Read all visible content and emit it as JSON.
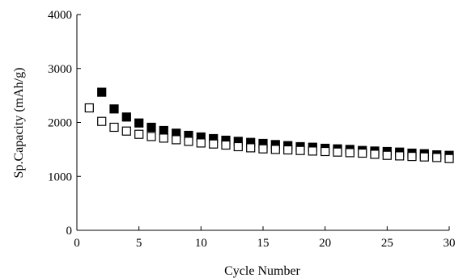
{
  "chart_data": {
    "type": "scatter",
    "title": "",
    "xlabel": "Cycle Number",
    "ylabel": "Sp.Capacity (mAh/g)",
    "xlim": [
      0,
      30
    ],
    "ylim": [
      0,
      4000
    ],
    "x_ticks": [
      0,
      5,
      10,
      15,
      20,
      25,
      30
    ],
    "y_ticks": [
      0,
      1000,
      2000,
      3000,
      4000
    ],
    "grid": false,
    "legend": "none",
    "series": [
      {
        "marker": "filled-square",
        "color": "#000000",
        "x": [
          2,
          3,
          4,
          5,
          6,
          7,
          8,
          9,
          10,
          11,
          12,
          13,
          14,
          15,
          16,
          17,
          18,
          19,
          20,
          21,
          22,
          23,
          24,
          25,
          26,
          27,
          28,
          29,
          30
        ],
        "values": [
          2560,
          2250,
          2100,
          1990,
          1910,
          1850,
          1800,
          1760,
          1730,
          1700,
          1670,
          1650,
          1630,
          1610,
          1590,
          1570,
          1550,
          1540,
          1520,
          1510,
          1500,
          1480,
          1470,
          1460,
          1450,
          1430,
          1420,
          1400,
          1390
        ]
      },
      {
        "marker": "open-square",
        "color": "#000000",
        "x": [
          1,
          2,
          3,
          4,
          5,
          6,
          7,
          8,
          9,
          10,
          11,
          12,
          13,
          14,
          15,
          16,
          17,
          18,
          19,
          20,
          21,
          22,
          23,
          24,
          25,
          26,
          27,
          28,
          29,
          30
        ],
        "values": [
          2270,
          2020,
          1910,
          1840,
          1780,
          1740,
          1710,
          1680,
          1650,
          1620,
          1600,
          1580,
          1550,
          1530,
          1510,
          1500,
          1490,
          1480,
          1470,
          1460,
          1450,
          1440,
          1430,
          1410,
          1390,
          1380,
          1370,
          1360,
          1350,
          1330
        ]
      }
    ]
  }
}
